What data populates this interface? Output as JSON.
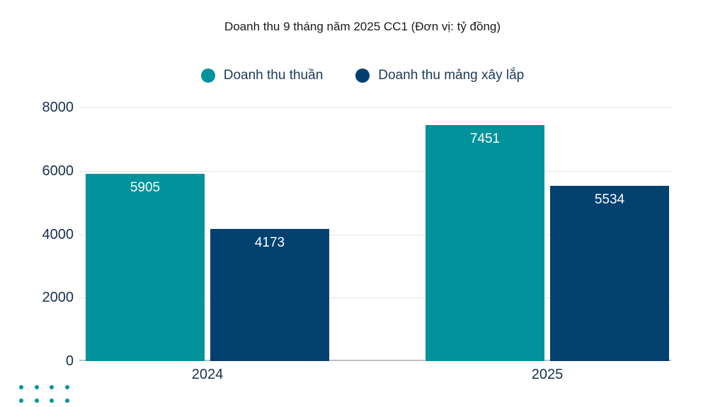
{
  "chart_data": {
    "type": "bar",
    "title": "Doanh thu 9 tháng năm 2025 CC1 (Đơn vị: tỷ đồng)",
    "categories": [
      "2024",
      "2025"
    ],
    "series": [
      {
        "name": "Doanh thu thuần",
        "color": "#00939B",
        "values": [
          5905,
          7451
        ]
      },
      {
        "name": "Doanh thu mảng xây lắp",
        "color": "#02406F",
        "values": [
          4173,
          5534
        ]
      }
    ],
    "xlabel": "",
    "ylabel": "",
    "ylim": [
      0,
      8000
    ],
    "yticks": [
      0,
      2000,
      4000,
      6000,
      8000
    ],
    "grid": true,
    "legend_position": "top",
    "value_labels": "inside-top, white"
  },
  "colors": {
    "teal": "#00939B",
    "navy": "#02406F",
    "title_text": "#1A1A1A",
    "axis_text": "#17314E",
    "legend_text": "#1C3A5A",
    "gridline": "#E4E4E4",
    "axis_line": "#BCC0C3",
    "value_label": "#FFFFFF",
    "background": "#FFFFFF"
  },
  "decoration": {
    "dot_rows": 2,
    "dot_cols": 4,
    "dot_color": "#00939B"
  }
}
